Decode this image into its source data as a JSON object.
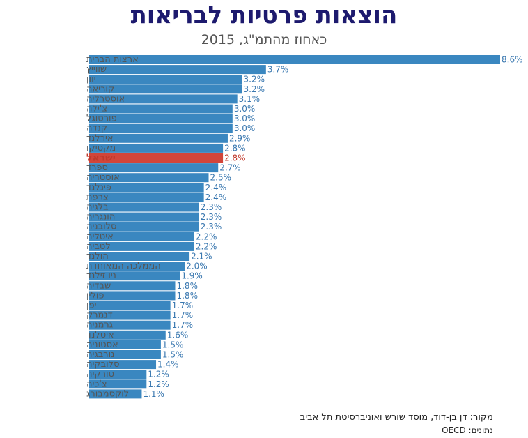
{
  "chart_data": {
    "type": "bar",
    "orientation": "horizontal",
    "title": "הוצאות פרטיות לבריאות",
    "subtitle": "כאחוז מהתמ\"ג, 2015",
    "categories": [
      "ארצות הברית",
      "שווייץ",
      "יוון",
      "קוריאה",
      "אוסטרליה",
      "צ'ילה",
      "פורטוגל",
      "קנדה",
      "אירלנד",
      "מקסיקו",
      "ישראל",
      "ספרד",
      "אוסטריה",
      "פינלנד",
      "צרפת",
      "בלגיה",
      "הונגריה",
      "סלובניה",
      "איטליה",
      "לטביה",
      "הולנד",
      "הממלכה המאוחדת",
      "ניו זילנד",
      "שבדיה",
      "פולין",
      "יפן",
      "דנמרק",
      "גרמניה",
      "איסלנד",
      "אסטוניה",
      "נורבגיה",
      "סלובקיה",
      "טורקיה",
      "צ'כיה",
      "לוקסמבורג"
    ],
    "values": [
      8.6,
      3.7,
      3.2,
      3.2,
      3.1,
      3.0,
      3.0,
      3.0,
      2.9,
      2.8,
      2.8,
      2.7,
      2.5,
      2.4,
      2.4,
      2.3,
      2.3,
      2.3,
      2.2,
      2.2,
      2.1,
      2.0,
      1.9,
      1.8,
      1.8,
      1.7,
      1.7,
      1.7,
      1.6,
      1.5,
      1.5,
      1.4,
      1.2,
      1.2,
      1.1
    ],
    "value_labels": [
      "8.6%",
      "3.7%",
      "3.2%",
      "3.2%",
      "3.1%",
      "3.0%",
      "3.0%",
      "3.0%",
      "2.9%",
      "2.8%",
      "2.8%",
      "2.7%",
      "2.5%",
      "2.4%",
      "2.4%",
      "2.3%",
      "2.3%",
      "2.3%",
      "2.2%",
      "2.2%",
      "2.1%",
      "2.0%",
      "1.9%",
      "1.8%",
      "1.8%",
      "1.7%",
      "1.7%",
      "1.7%",
      "1.6%",
      "1.5%",
      "1.5%",
      "1.4%",
      "1.2%",
      "1.2%",
      "1.1%"
    ],
    "highlight": "ישראל",
    "xlim": [
      0,
      8.6
    ],
    "grid": false,
    "legend": "none",
    "colors": {
      "bar": "#3a87c0",
      "highlight": "#d2453a"
    }
  },
  "footer": {
    "source": "מקור:  דן בן-דוד, מוסד שורש ואוניברסיטת תל אביב",
    "data_note": "נתונים: OECD"
  }
}
